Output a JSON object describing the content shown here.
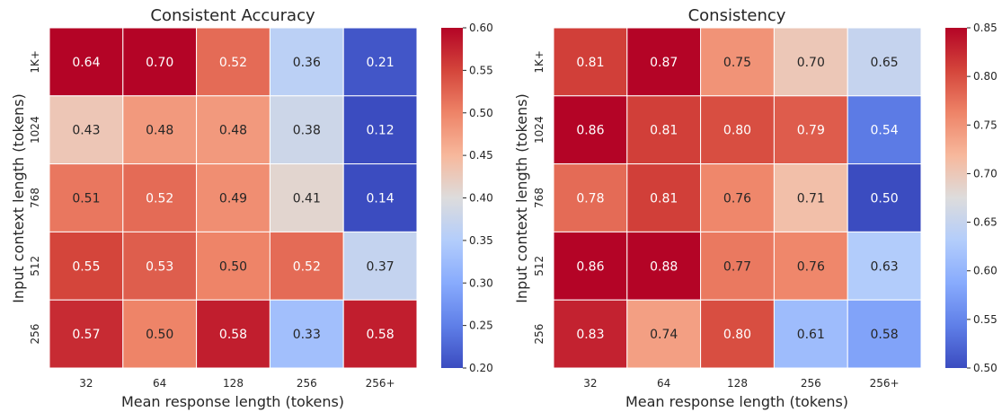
{
  "chart_data": [
    {
      "type": "heatmap",
      "title": "Consistent Accuracy",
      "xlabel": "Mean response length (tokens)",
      "ylabel": "Input context length (tokens)",
      "x_categories": [
        "32",
        "64",
        "128",
        "256",
        "256+"
      ],
      "y_categories": [
        "1K+",
        "1024",
        "768",
        "512",
        "256"
      ],
      "values": [
        [
          0.64,
          0.7,
          0.52,
          0.36,
          0.21
        ],
        [
          0.43,
          0.48,
          0.48,
          0.38,
          0.12
        ],
        [
          0.51,
          0.52,
          0.49,
          0.41,
          0.14
        ],
        [
          0.55,
          0.53,
          0.5,
          0.52,
          0.37
        ],
        [
          0.57,
          0.5,
          0.58,
          0.33,
          0.58
        ]
      ],
      "colorbar": {
        "vmin": 0.2,
        "vmax": 0.6,
        "ticks": [
          0.2,
          0.25,
          0.3,
          0.35,
          0.4,
          0.45,
          0.5,
          0.55,
          0.6
        ],
        "tick_labels": [
          "0.20",
          "0.25",
          "0.30",
          "0.35",
          "0.40",
          "0.45",
          "0.50",
          "0.55",
          "0.60"
        ]
      },
      "colormap": "coolwarm"
    },
    {
      "type": "heatmap",
      "title": "Consistency",
      "xlabel": "Mean response length (tokens)",
      "ylabel": "Input context length (tokens)",
      "x_categories": [
        "32",
        "64",
        "128",
        "256",
        "256+"
      ],
      "y_categories": [
        "1K+",
        "1024",
        "768",
        "512",
        "256"
      ],
      "values": [
        [
          0.81,
          0.87,
          0.75,
          0.7,
          0.65
        ],
        [
          0.86,
          0.81,
          0.8,
          0.79,
          0.54
        ],
        [
          0.78,
          0.81,
          0.76,
          0.71,
          0.5
        ],
        [
          0.86,
          0.88,
          0.77,
          0.76,
          0.63
        ],
        [
          0.83,
          0.74,
          0.8,
          0.61,
          0.58
        ]
      ],
      "colorbar": {
        "vmin": 0.5,
        "vmax": 0.85,
        "ticks": [
          0.5,
          0.55,
          0.6,
          0.65,
          0.7,
          0.75,
          0.8,
          0.85
        ],
        "tick_labels": [
          "0.50",
          "0.55",
          "0.60",
          "0.65",
          "0.70",
          "0.75",
          "0.80",
          "0.85"
        ]
      },
      "colormap": "coolwarm"
    }
  ]
}
